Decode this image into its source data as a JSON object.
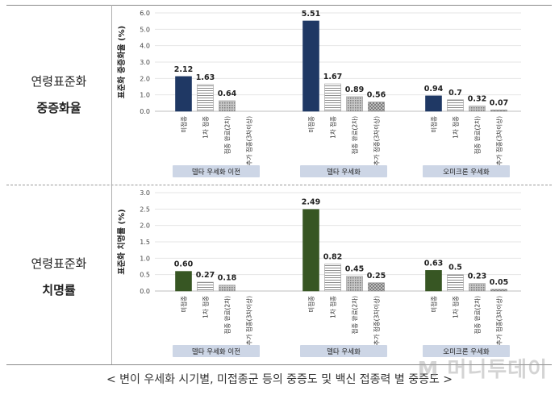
{
  "caption": "< 변이 우세화 시기별, 미접종군 등의 중증도 및 백신 접종력 별 중증도 >",
  "watermark": "M 머니투데이",
  "rows": [
    {
      "label1": "연령표준화",
      "label2": "중증화율"
    },
    {
      "label1": "연령표준화",
      "label2": "치명률"
    }
  ],
  "colors": {
    "severe_unvax": "#1f3864",
    "fatal_unvax": "#375623",
    "group_bg": "#cdd6e6",
    "border": "#8a8a8a"
  },
  "chart_data": [
    {
      "type": "bar",
      "ylabel": "표준화 중증화율 (%)",
      "ylim": [
        0,
        6.0
      ],
      "yticks": [
        "0.0",
        "1.0",
        "2.0",
        "3.0",
        "4.0",
        "5.0",
        "6.0"
      ],
      "categories": [
        "미접종",
        "1차 접종",
        "접종 완료(2차)",
        "추가 접종(3차이상)"
      ],
      "groups": [
        {
          "name": "델타 우세화 이전",
          "values": [
            2.12,
            1.63,
            0.64,
            null
          ],
          "labels": [
            "2.12",
            "1.63",
            "0.64",
            ""
          ]
        },
        {
          "name": "델타 우세화",
          "values": [
            5.51,
            1.67,
            0.89,
            0.56
          ],
          "labels": [
            "5.51",
            "1.67",
            "0.89",
            "0.56"
          ]
        },
        {
          "name": "오미크론 우세화",
          "values": [
            0.94,
            0.7,
            0.32,
            0.07
          ],
          "labels": [
            "0.94",
            "0.7",
            "0.32",
            "0.07"
          ]
        }
      ]
    },
    {
      "type": "bar",
      "ylabel": "표준화 치명률 (%)",
      "ylim": [
        0,
        3.0
      ],
      "yticks": [
        "0.0",
        "0.5",
        "1.0",
        "1.5",
        "2.0",
        "2.5",
        "3.0"
      ],
      "categories": [
        "미접종",
        "1차 접종",
        "접종 완료(2차)",
        "추가 접종(3차이상)"
      ],
      "groups": [
        {
          "name": "델타 우세화 이전",
          "values": [
            0.6,
            0.27,
            0.18,
            null
          ],
          "labels": [
            "0.60",
            "0.27",
            "0.18",
            ""
          ]
        },
        {
          "name": "델타 우세화",
          "values": [
            2.49,
            0.82,
            0.45,
            0.25
          ],
          "labels": [
            "2.49",
            "0.82",
            "0.45",
            "0.25"
          ]
        },
        {
          "name": "오미크론 우세화",
          "values": [
            0.63,
            0.5,
            0.23,
            0.05
          ],
          "labels": [
            "0.63",
            "0.5",
            "0.23",
            "0.05"
          ]
        }
      ]
    }
  ]
}
